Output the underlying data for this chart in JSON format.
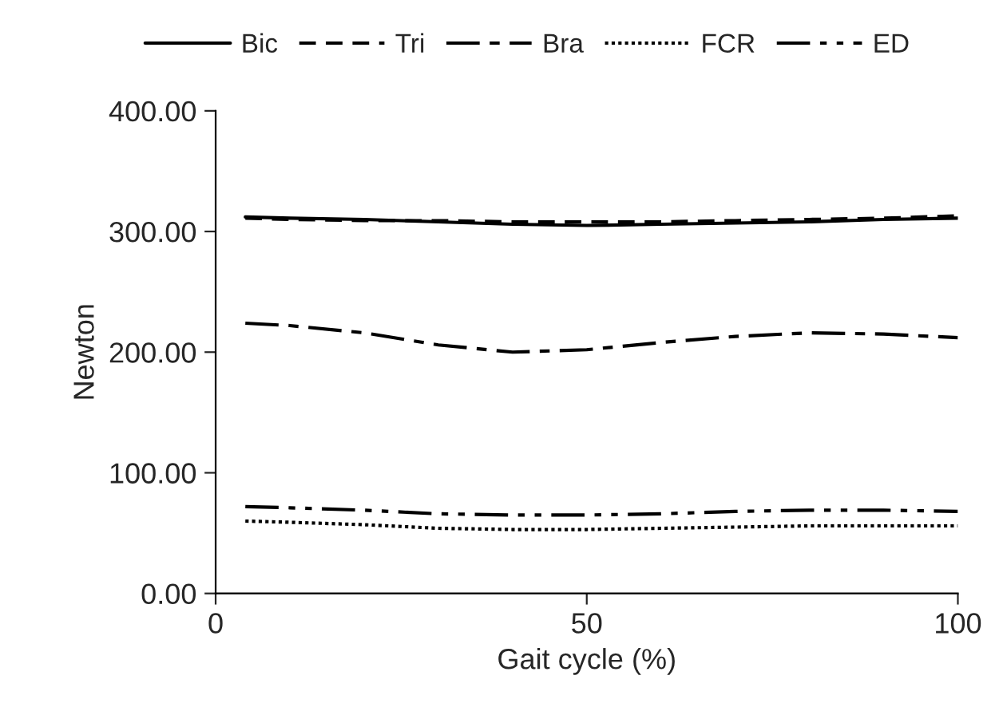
{
  "chart_data": {
    "type": "line",
    "xlabel": "Gait cycle (%)",
    "ylabel": "Newton",
    "x": [
      4,
      10,
      20,
      30,
      40,
      50,
      60,
      70,
      80,
      90,
      100
    ],
    "series": [
      {
        "name": "Bic",
        "color": "#000000",
        "line_style": "solid",
        "values": [
          312,
          311,
          310,
          308,
          306,
          305,
          306,
          307,
          308,
          310,
          311
        ]
      },
      {
        "name": "Tri",
        "color": "#000000",
        "line_style": "dashed",
        "values": [
          311,
          310,
          309,
          309,
          308,
          308,
          308,
          309,
          310,
          311,
          313
        ]
      },
      {
        "name": "Bra",
        "color": "#000000",
        "line_style": "longdashdot",
        "values": [
          224,
          222,
          216,
          206,
          200,
          202,
          208,
          213,
          216,
          215,
          212
        ]
      },
      {
        "name": "FCR",
        "color": "#000000",
        "line_style": "dotted",
        "values": [
          60,
          59,
          57,
          54,
          53,
          53,
          54,
          55,
          56,
          56,
          56
        ]
      },
      {
        "name": "ED",
        "color": "#000000",
        "line_style": "dashdotdot",
        "values": [
          72,
          71,
          69,
          66,
          65,
          65,
          66,
          68,
          69,
          69,
          68
        ]
      }
    ],
    "xlim": [
      0,
      100
    ],
    "xticks": [
      0,
      50,
      100
    ],
    "ylim": [
      0,
      400
    ],
    "yticks": [
      {
        "value": 0,
        "label": "0.00"
      },
      {
        "value": 100,
        "label": "100.00"
      },
      {
        "value": 200,
        "label": "200.00"
      },
      {
        "value": 300,
        "label": "300.00"
      },
      {
        "value": 400,
        "label": "400.00"
      }
    ],
    "grid": false,
    "legend": "top"
  }
}
